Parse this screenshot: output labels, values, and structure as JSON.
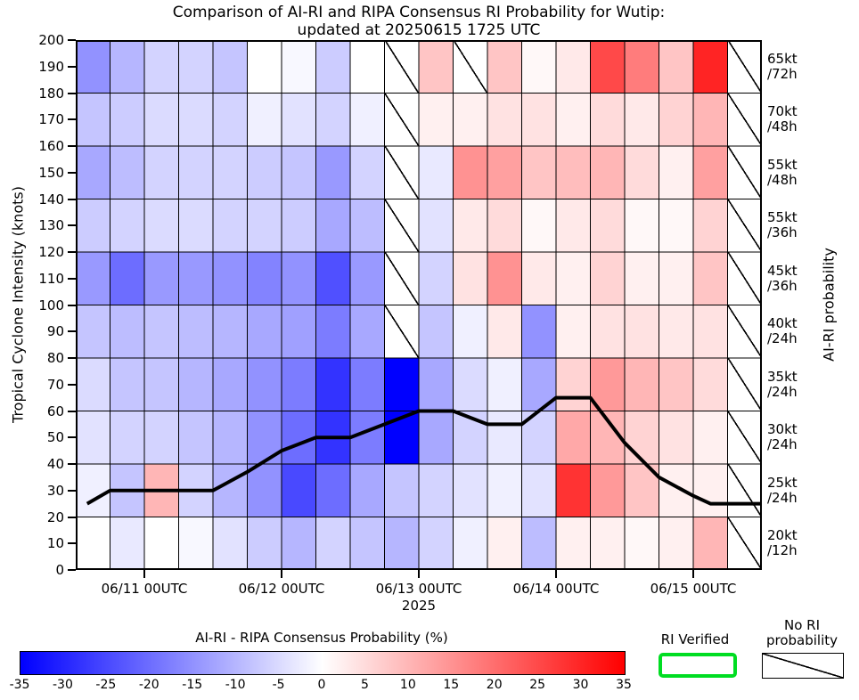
{
  "chart_data": {
    "type": "heatmap",
    "title": "Comparison of AI-RI and RIPA Consensus RI Probability for Wutip:",
    "subtitle": "updated at 20250615 1725 UTC",
    "xlabel": "2025",
    "ylabel": "Tropical Cyclone Intensity (knots)",
    "right_axis_label": "AI-RI probability",
    "x_ticks": [
      {
        "hour": 12,
        "label": "06/11 00UTC"
      },
      {
        "hour": 36,
        "label": "06/12 00UTC"
      },
      {
        "hour": 60,
        "label": "06/13 00UTC"
      },
      {
        "hour": 84,
        "label": "06/14 00UTC"
      },
      {
        "hour": 108,
        "label": "06/15 00UTC"
      }
    ],
    "y_ticks": [
      0,
      10,
      20,
      30,
      40,
      50,
      60,
      70,
      80,
      90,
      100,
      110,
      120,
      130,
      140,
      150,
      160,
      170,
      180,
      190,
      200
    ],
    "x_hours_range": [
      0,
      120
    ],
    "column_duration_hours": 6,
    "intensity_range_knots": [
      0,
      200
    ],
    "value_units": "AI-RI minus RIPA consensus RI probability, percent",
    "no_data_note": "null cells are hatched = No RI probability",
    "rows": [
      {
        "intensity_band": "180-200",
        "ri_threshold": "65kt",
        "ri_period": "/72h",
        "values": [
          -15,
          -10,
          -6,
          -6,
          -8,
          0,
          -1,
          -7,
          0,
          null,
          8,
          null,
          8,
          1,
          3,
          25,
          18,
          8,
          30,
          null
        ]
      },
      {
        "intensity_band": "160-180",
        "ri_threshold": "70kt",
        "ri_period": "/48h",
        "values": [
          -8,
          -7,
          -5,
          -5,
          -6,
          -2,
          -4,
          -6,
          -2,
          null,
          2,
          2,
          4,
          4,
          2,
          5,
          3,
          6,
          10,
          null
        ]
      },
      {
        "intensity_band": "140-160",
        "ri_threshold": "55kt",
        "ri_period": "/48h",
        "values": [
          -12,
          -9,
          -6,
          -6,
          -6,
          -7,
          -8,
          -14,
          -6,
          null,
          -3,
          15,
          13,
          8,
          9,
          10,
          5,
          2,
          13,
          null
        ]
      },
      {
        "intensity_band": "120-140",
        "ri_threshold": "55kt",
        "ri_period": "/36h",
        "values": [
          -7,
          -6,
          -5,
          -5,
          -6,
          -6,
          -7,
          -12,
          -9,
          null,
          -4,
          3,
          5,
          1,
          3,
          5,
          1,
          1,
          6,
          null
        ]
      },
      {
        "intensity_band": "100-120",
        "ri_threshold": "45kt",
        "ri_period": "/36h",
        "values": [
          -14,
          -20,
          -14,
          -14,
          -15,
          -17,
          -15,
          -24,
          -14,
          null,
          -6,
          4,
          15,
          3,
          2,
          6,
          2,
          2,
          8,
          null
        ]
      },
      {
        "intensity_band": "80-100",
        "ri_threshold": "40kt",
        "ri_period": "/24h",
        "values": [
          -8,
          -9,
          -8,
          -9,
          -10,
          -12,
          -13,
          -18,
          -12,
          null,
          -8,
          -2,
          3,
          -15,
          2,
          4,
          4,
          3,
          4,
          null
        ]
      },
      {
        "intensity_band": "60-80",
        "ri_threshold": "35kt",
        "ri_period": "/24h",
        "values": [
          -5,
          -8,
          -8,
          -10,
          -12,
          -15,
          -18,
          -28,
          -18,
          -35,
          -12,
          -5,
          -2,
          -12,
          6,
          14,
          10,
          8,
          5,
          null
        ]
      },
      {
        "intensity_band": "40-60",
        "ri_threshold": "30kt",
        "ri_period": "/24h",
        "values": [
          -4,
          -6,
          -6,
          -8,
          -10,
          -15,
          -20,
          -28,
          -18,
          -35,
          -12,
          -6,
          -3,
          -6,
          12,
          10,
          6,
          4,
          2,
          null
        ]
      },
      {
        "intensity_band": "20-40",
        "ri_threshold": "25kt",
        "ri_period": "/24h",
        "values": [
          -2,
          -8,
          10,
          -6,
          -10,
          -15,
          -25,
          -20,
          -12,
          -8,
          -6,
          -4,
          -2,
          -4,
          28,
          14,
          8,
          2,
          2,
          null
        ]
      },
      {
        "intensity_band": "0-20",
        "ri_threshold": "20kt",
        "ri_period": "/12h",
        "values": [
          0,
          -3,
          0,
          -1,
          -4,
          -7,
          -10,
          -6,
          -8,
          -10,
          -6,
          -2,
          2,
          -9,
          2,
          2,
          1,
          2,
          10,
          null
        ]
      }
    ],
    "track_line": {
      "label": "tropical cyclone intensity (kt)",
      "points_hour_kt": [
        [
          2,
          25
        ],
        [
          6,
          30
        ],
        [
          12,
          30
        ],
        [
          18,
          30
        ],
        [
          24,
          30
        ],
        [
          30,
          37
        ],
        [
          36,
          45
        ],
        [
          42,
          50
        ],
        [
          48,
          50
        ],
        [
          54,
          55
        ],
        [
          60,
          60
        ],
        [
          66,
          60
        ],
        [
          72,
          55
        ],
        [
          78,
          55
        ],
        [
          84,
          65
        ],
        [
          90,
          65
        ],
        [
          96,
          48
        ],
        [
          102,
          35
        ],
        [
          108,
          28
        ],
        [
          111,
          25
        ],
        [
          120,
          25
        ]
      ]
    },
    "colorbar": {
      "title": "AI-RI - RIPA Consensus Probability (%)",
      "min": -35,
      "max": 35,
      "ticks": [
        -35,
        -30,
        -25,
        -20,
        -15,
        -10,
        -5,
        0,
        5,
        10,
        15,
        20,
        25,
        30,
        35
      ]
    },
    "legend": {
      "ri_verified": "RI Verified",
      "no_ri_line1": "No RI",
      "no_ri_line2": "probability"
    },
    "colors": {
      "negative_end": "#0000ff",
      "zero": "#ffffff",
      "positive_end": "#ff0000",
      "track": "#000000",
      "ri_verified_box": "#00dd22",
      "grid": "#000000"
    }
  }
}
